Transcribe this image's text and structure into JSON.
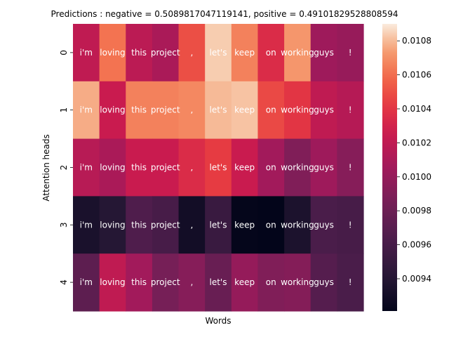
{
  "chart_data": {
    "type": "heatmap",
    "title": "Predictions : negative = 0.5089817047119141, positive = 0.49101829528808594",
    "xlabel": "Words",
    "ylabel": "Attention heads",
    "rows": [
      "0",
      "1",
      "2",
      "3",
      "4"
    ],
    "words": [
      "i'm",
      "loving",
      "this",
      "project",
      ",",
      "let's",
      "keep",
      "on",
      "working",
      "guys",
      "!"
    ],
    "values": [
      [
        0.0102,
        0.01062,
        0.01018,
        0.0101,
        0.0105,
        0.01084,
        0.01066,
        0.01035,
        0.01072,
        0.01004,
        0.01001
      ],
      [
        0.01077,
        0.01025,
        0.01066,
        0.01066,
        0.01068,
        0.0108,
        0.01082,
        0.01048,
        0.0104,
        0.0102,
        0.01015
      ],
      [
        0.01016,
        0.0101,
        0.01025,
        0.01025,
        0.01035,
        0.01043,
        0.01025,
        0.01006,
        0.0099,
        0.01004,
        0.00993
      ],
      [
        0.00934,
        0.0094,
        0.00965,
        0.0096,
        0.0093,
        0.00952,
        0.00922,
        0.0092,
        0.00935,
        0.00962,
        0.0096
      ],
      [
        0.00972,
        0.0102,
        0.01006,
        0.00985,
        0.00993,
        0.00978,
        0.01,
        0.0099,
        0.00992,
        0.00968,
        0.00962
      ]
    ],
    "colorbar": {
      "colormap": "rocket",
      "vmin": 0.00921,
      "vmax": 0.0109,
      "ticks": [
        0.0094,
        0.0096,
        0.0098,
        0.01,
        0.0102,
        0.0104,
        0.0106,
        0.0108
      ],
      "tick_labels": [
        "0.0094",
        "0.0096",
        "0.0098",
        "0.0100",
        "0.0102",
        "0.0104",
        "0.0106",
        "0.0108"
      ]
    }
  }
}
